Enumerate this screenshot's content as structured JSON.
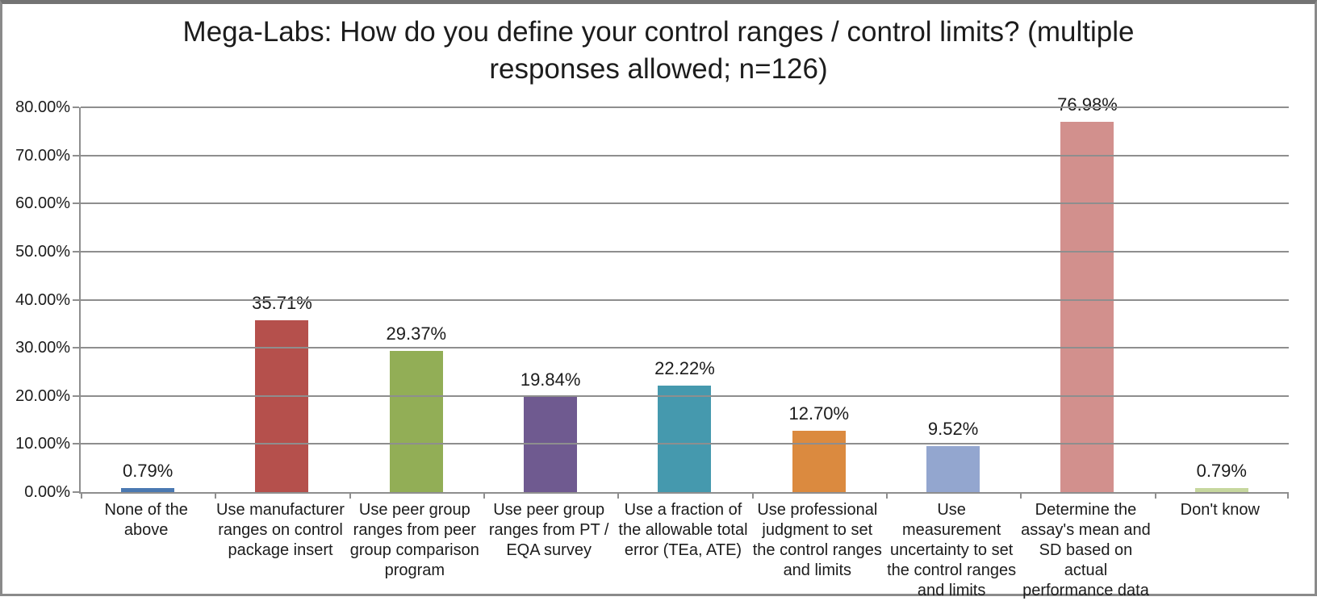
{
  "chart_data": {
    "type": "bar",
    "title": "Mega-Labs: How do you define your control ranges / control limits? (multiple responses allowed; n=126)",
    "categories": [
      "None of the above",
      "Use manufacturer ranges on control package insert",
      "Use peer group ranges from peer group comparison program",
      "Use peer group ranges from PT / EQA survey",
      "Use a fraction of the allowable total error (TEa, ATE)",
      "Use professional judgment to set the control ranges and limits",
      "Use measurement uncertainty to set the control ranges and limits",
      "Determine the assay's mean and SD based on actual performance data",
      "Don't know"
    ],
    "values": [
      0.79,
      35.71,
      29.37,
      19.84,
      22.22,
      12.7,
      9.52,
      76.98,
      0.79
    ],
    "value_labels": [
      "0.79%",
      "35.71%",
      "29.37%",
      "19.84%",
      "22.22%",
      "12.70%",
      "9.52%",
      "76.98%",
      "0.79%"
    ],
    "bar_colors": [
      "#4b79b2",
      "#b5504c",
      "#92ae56",
      "#6f5a90",
      "#4599ae",
      "#db8a3f",
      "#93a6cf",
      "#d2908d",
      "#c6d79e"
    ],
    "xlabel": "",
    "ylabel": "",
    "ylim": [
      0,
      80
    ],
    "ytick_labels": [
      "0.00%",
      "10.00%",
      "20.00%",
      "30.00%",
      "40.00%",
      "50.00%",
      "60.00%",
      "70.00%",
      "80.00%"
    ],
    "grid": true,
    "legend_position": "none"
  },
  "colors": {
    "gridline": "#8e8e8e",
    "axis": "#8e8e8e",
    "frame_border": "#7f7f7f",
    "background": "#ffffff",
    "text": "#1c1c1c"
  }
}
